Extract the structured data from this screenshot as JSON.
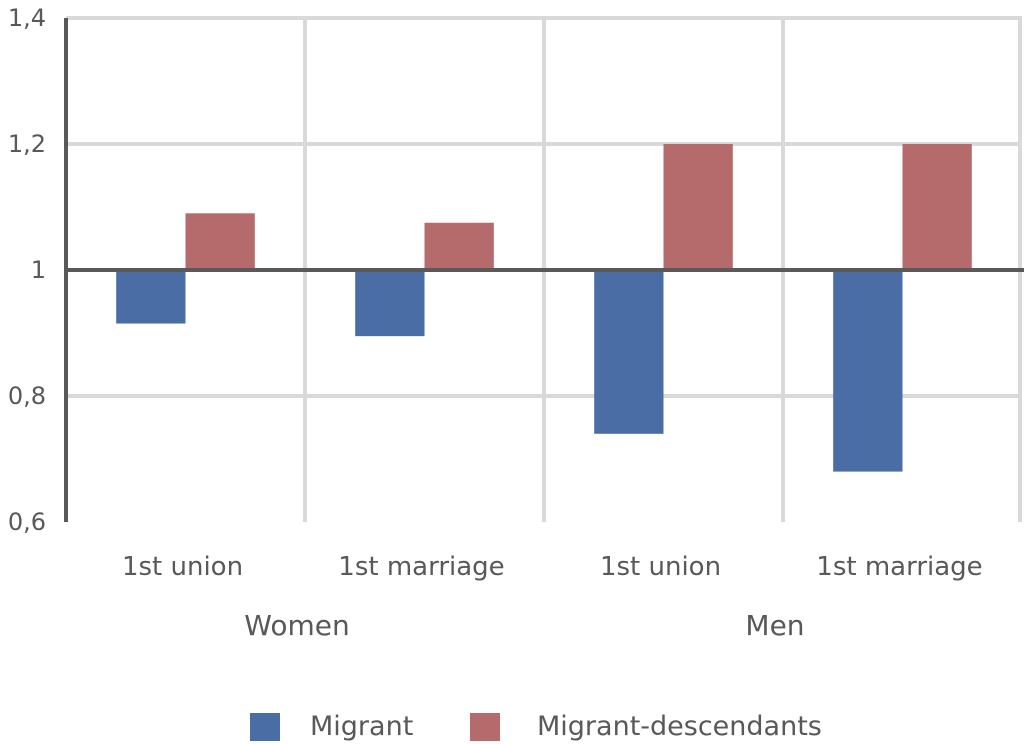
{
  "chart_data": {
    "type": "bar",
    "title": "",
    "xlabel": "",
    "ylabel": "",
    "groups": [
      {
        "label": "Women",
        "categories": [
          "1st union",
          "1st marriage"
        ]
      },
      {
        "label": "Men",
        "categories": [
          "1st union",
          "1st marriage"
        ]
      }
    ],
    "categories": [
      "1st union",
      "1st marriage",
      "1st union",
      "1st marriage"
    ],
    "series": [
      {
        "name": "Migrant",
        "color": "#4a6da6",
        "values": [
          0.915,
          0.895,
          0.74,
          0.68
        ]
      },
      {
        "name": "Migrant-descendants",
        "color": "#b56b6c",
        "values": [
          1.09,
          1.075,
          1.2,
          1.2
        ]
      }
    ],
    "baseline": 1,
    "ylim": [
      0.6,
      1.4
    ],
    "yticks": [
      0.6,
      0.8,
      1,
      1.2,
      1.4
    ],
    "ytick_labels": [
      "0,6",
      "0,8",
      "1",
      "1,2",
      "1,4"
    ],
    "grid": true,
    "legend_position": "bottom"
  }
}
